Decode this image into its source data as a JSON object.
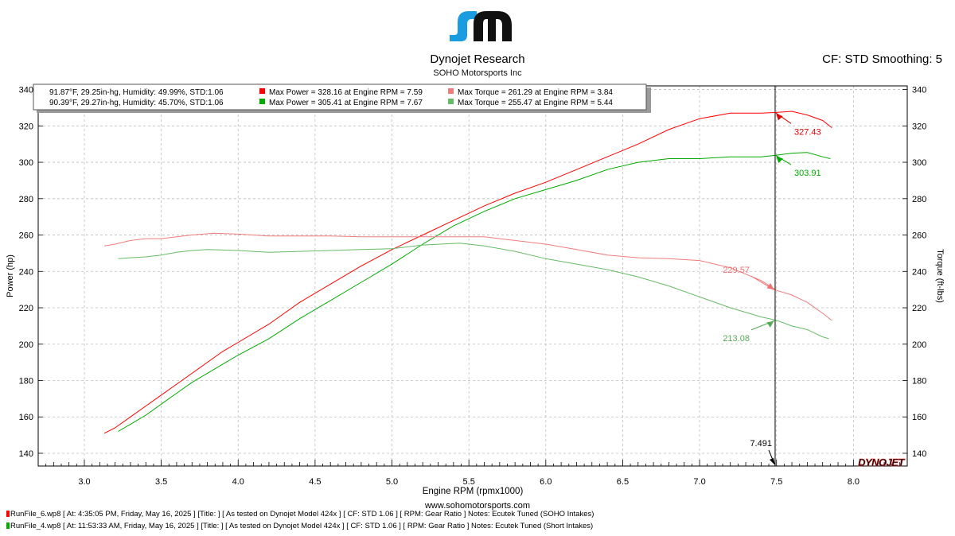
{
  "header": {
    "company": "Dynojet Research",
    "shop": "SOHO Motorsports Inc",
    "settings": "CF: STD Smoothing: 5",
    "logo_name": "sm-logo"
  },
  "legend": [
    {
      "conditions": "91.87°F, 29.25in-hg, Humidity: 49.99%, STD:1.06",
      "power_text": "Max Power = 328.16 at Engine RPM = 7.59",
      "torque_text": "Max Torque = 261.29 at Engine RPM = 3.84",
      "power_color": "#ff0000",
      "torque_color": "#f07c7c"
    },
    {
      "conditions": "90.39°F, 29.27in-hg, Humidity: 45.70%, STD:1.06",
      "power_text": "Max Power = 305.41 at Engine RPM = 7.67",
      "torque_text": "Max Torque = 255.47 at Engine RPM = 5.44",
      "power_color": "#00aa00",
      "torque_color": "#66bb66"
    }
  ],
  "chart_data": {
    "type": "line",
    "xlabel": "Engine RPM (rpmx1000)",
    "ylabel": "Power (hp)",
    "y2label": "Torque (ft-lbs)",
    "xlim": [
      2.7,
      8.35
    ],
    "ylim": [
      133,
      342
    ],
    "xticks": [
      3.0,
      3.5,
      4.0,
      4.5,
      5.0,
      5.5,
      6.0,
      6.5,
      7.0,
      7.5,
      8.0
    ],
    "yticks": [
      140,
      160,
      180,
      200,
      220,
      240,
      260,
      280,
      300,
      320,
      340
    ],
    "grid": true,
    "cursor": {
      "x": 7.491,
      "label": "7.491"
    },
    "series": [
      {
        "name": "Power (RunFile_6)",
        "color": "#ff0000",
        "x": [
          3.13,
          3.2,
          3.3,
          3.4,
          3.5,
          3.6,
          3.7,
          3.8,
          3.9,
          4.0,
          4.2,
          4.4,
          4.6,
          4.8,
          5.0,
          5.2,
          5.4,
          5.6,
          5.8,
          6.0,
          6.2,
          6.4,
          6.6,
          6.8,
          7.0,
          7.2,
          7.4,
          7.5,
          7.6,
          7.7,
          7.8,
          7.86
        ],
        "values": [
          151,
          154,
          160,
          166,
          172,
          178,
          184,
          190,
          196,
          201,
          211,
          223,
          233,
          243,
          252,
          260,
          268,
          276,
          283,
          289,
          296,
          303,
          310,
          318,
          324,
          327,
          327,
          327.4,
          328,
          326,
          323,
          319
        ]
      },
      {
        "name": "Power (RunFile_4)",
        "color": "#00aa00",
        "x": [
          3.22,
          3.3,
          3.4,
          3.5,
          3.6,
          3.7,
          3.8,
          3.9,
          4.0,
          4.2,
          4.4,
          4.6,
          4.8,
          5.0,
          5.2,
          5.4,
          5.6,
          5.8,
          6.0,
          6.2,
          6.4,
          6.6,
          6.8,
          7.0,
          7.2,
          7.4,
          7.5,
          7.6,
          7.7,
          7.8,
          7.85
        ],
        "values": [
          152,
          156,
          161,
          167,
          173,
          179,
          184,
          189,
          194,
          203,
          214,
          224,
          234,
          244,
          255,
          265,
          273,
          280,
          285,
          290,
          296,
          300,
          302,
          302,
          303,
          303,
          303.9,
          305,
          305.4,
          303,
          302
        ]
      },
      {
        "name": "Torque (RunFile_6)",
        "color": "#f07c7c",
        "x": [
          3.13,
          3.2,
          3.3,
          3.4,
          3.5,
          3.6,
          3.7,
          3.84,
          4.0,
          4.2,
          4.4,
          4.6,
          4.8,
          5.0,
          5.2,
          5.4,
          5.6,
          5.8,
          6.0,
          6.2,
          6.4,
          6.6,
          6.8,
          7.0,
          7.2,
          7.4,
          7.5,
          7.6,
          7.7,
          7.8,
          7.86
        ],
        "values": [
          254,
          255,
          257,
          258,
          258,
          259,
          260,
          261,
          260.5,
          259.5,
          259.5,
          259.5,
          259,
          259,
          259,
          259,
          259,
          257,
          255,
          252,
          249,
          247.5,
          247,
          246,
          242,
          235,
          229.6,
          227,
          223,
          217,
          213
        ]
      },
      {
        "name": "Torque (RunFile_4)",
        "color": "#66bb66",
        "x": [
          3.22,
          3.3,
          3.4,
          3.5,
          3.6,
          3.7,
          3.8,
          4.0,
          4.2,
          4.4,
          4.6,
          4.8,
          5.0,
          5.2,
          5.44,
          5.6,
          5.8,
          6.0,
          6.2,
          6.4,
          6.6,
          6.8,
          7.0,
          7.2,
          7.4,
          7.5,
          7.6,
          7.7,
          7.8,
          7.84
        ],
        "values": [
          247,
          247.5,
          248,
          249,
          250.5,
          251.5,
          252,
          251.5,
          250.5,
          251,
          251.5,
          252,
          252.5,
          254.5,
          255.5,
          254,
          251,
          247,
          244,
          241,
          237,
          232,
          226,
          220,
          215,
          213.1,
          210,
          208,
          204,
          203
        ]
      }
    ],
    "annotations": [
      {
        "x": 7.491,
        "y": 327.43,
        "label": "327.43",
        "color": "#e00000"
      },
      {
        "x": 7.491,
        "y": 303.91,
        "label": "303.91",
        "color": "#00aa00"
      },
      {
        "x": 7.491,
        "y": 229.57,
        "label": "229.57",
        "color": "#f07070"
      },
      {
        "x": 7.491,
        "y": 213.08,
        "label": "213.08",
        "color": "#55aa55"
      }
    ]
  },
  "footer": {
    "url": "www.sohomotorsports.com",
    "runs": [
      {
        "text": "RunFile_6.wp8 [ At: 4:35:05 PM, Friday, May 16, 2025 ] [Title: ]  [ As tested on Dynojet Model 424x ] [ CF: STD 1.06 ] [ RPM: Gear Ratio ] Notes: Ecutek Tuned (SOHO Intakes)",
        "color": "#ff0000"
      },
      {
        "text": "RunFile_4.wp8 [ At: 11:53:33 AM, Friday, May 16, 2025 ] [Title: ]  [ As tested on Dynojet Model 424x ] [ CF: STD 1.06 ] [ RPM: Gear Ratio ] Notes: Ecutek Tuned (Short Intakes)",
        "color": "#00aa00"
      }
    ]
  },
  "watermark": "DYNOJET"
}
